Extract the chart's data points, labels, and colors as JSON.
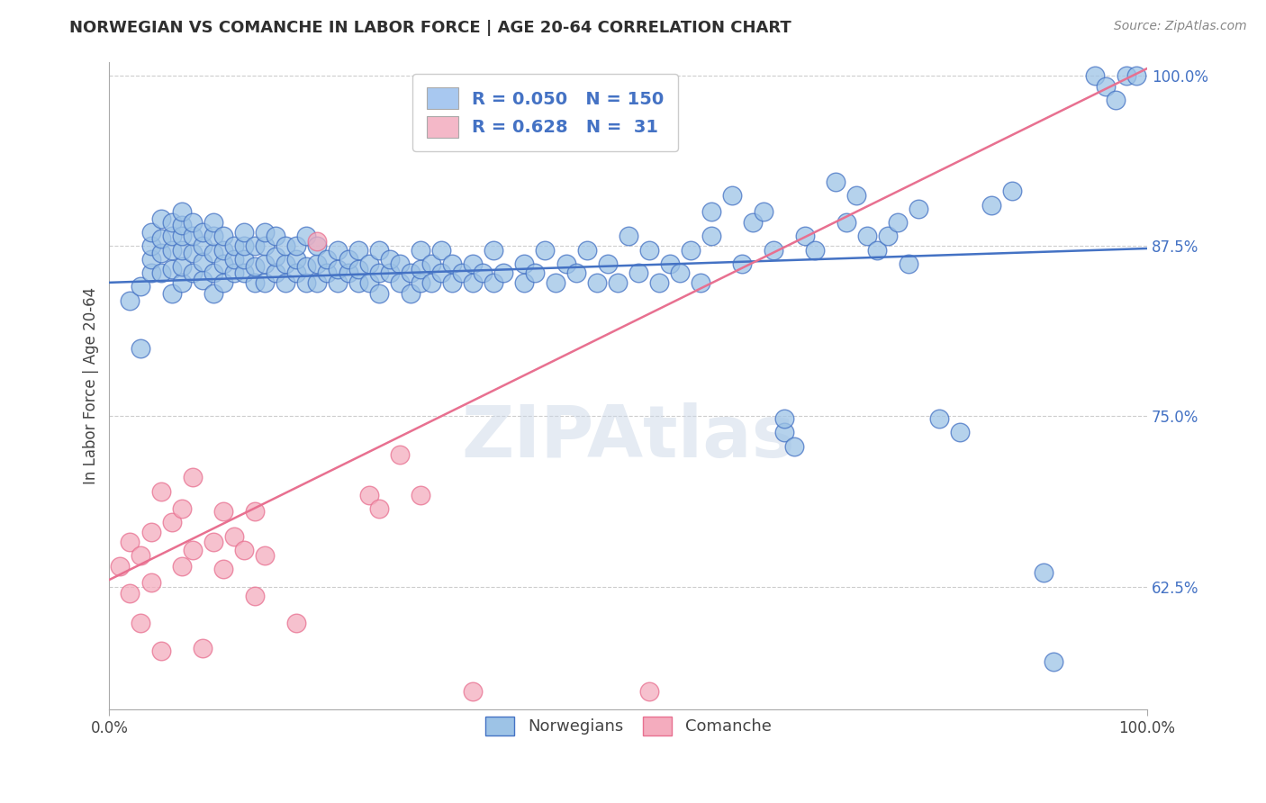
{
  "title": "NORWEGIAN VS COMANCHE IN LABOR FORCE | AGE 20-64 CORRELATION CHART",
  "source": "Source: ZipAtlas.com",
  "ylabel": "In Labor Force | Age 20-64",
  "xlim": [
    0.0,
    1.0
  ],
  "ylim": [
    0.535,
    1.01
  ],
  "yticks": [
    0.625,
    0.75,
    0.875,
    1.0
  ],
  "ytick_labels": [
    "62.5%",
    "75.0%",
    "87.5%",
    "100.0%"
  ],
  "legend_R_N": [
    {
      "R": "0.050",
      "N": "150",
      "color": "#a8c8f0"
    },
    {
      "R": "0.628",
      "N": " 31",
      "color": "#f4b8c8"
    }
  ],
  "blue_line_x": [
    0.0,
    1.0
  ],
  "blue_line_y": [
    0.848,
    0.873
  ],
  "pink_line_x": [
    0.0,
    1.0
  ],
  "pink_line_y": [
    0.63,
    1.005
  ],
  "scatter_norwegian": [
    [
      0.02,
      0.835
    ],
    [
      0.03,
      0.8
    ],
    [
      0.03,
      0.845
    ],
    [
      0.04,
      0.855
    ],
    [
      0.04,
      0.865
    ],
    [
      0.04,
      0.875
    ],
    [
      0.04,
      0.885
    ],
    [
      0.05,
      0.855
    ],
    [
      0.05,
      0.87
    ],
    [
      0.05,
      0.88
    ],
    [
      0.05,
      0.895
    ],
    [
      0.06,
      0.84
    ],
    [
      0.06,
      0.858
    ],
    [
      0.06,
      0.872
    ],
    [
      0.06,
      0.882
    ],
    [
      0.06,
      0.892
    ],
    [
      0.07,
      0.848
    ],
    [
      0.07,
      0.86
    ],
    [
      0.07,
      0.872
    ],
    [
      0.07,
      0.882
    ],
    [
      0.07,
      0.89
    ],
    [
      0.07,
      0.9
    ],
    [
      0.08,
      0.855
    ],
    [
      0.08,
      0.87
    ],
    [
      0.08,
      0.882
    ],
    [
      0.08,
      0.892
    ],
    [
      0.09,
      0.85
    ],
    [
      0.09,
      0.863
    ],
    [
      0.09,
      0.875
    ],
    [
      0.09,
      0.885
    ],
    [
      0.1,
      0.84
    ],
    [
      0.1,
      0.855
    ],
    [
      0.1,
      0.87
    ],
    [
      0.1,
      0.882
    ],
    [
      0.1,
      0.892
    ],
    [
      0.11,
      0.848
    ],
    [
      0.11,
      0.862
    ],
    [
      0.11,
      0.872
    ],
    [
      0.11,
      0.882
    ],
    [
      0.12,
      0.855
    ],
    [
      0.12,
      0.865
    ],
    [
      0.12,
      0.875
    ],
    [
      0.13,
      0.855
    ],
    [
      0.13,
      0.865
    ],
    [
      0.13,
      0.875
    ],
    [
      0.13,
      0.885
    ],
    [
      0.14,
      0.848
    ],
    [
      0.14,
      0.86
    ],
    [
      0.14,
      0.875
    ],
    [
      0.15,
      0.848
    ],
    [
      0.15,
      0.862
    ],
    [
      0.15,
      0.875
    ],
    [
      0.15,
      0.885
    ],
    [
      0.16,
      0.855
    ],
    [
      0.16,
      0.867
    ],
    [
      0.16,
      0.882
    ],
    [
      0.17,
      0.848
    ],
    [
      0.17,
      0.862
    ],
    [
      0.17,
      0.875
    ],
    [
      0.18,
      0.855
    ],
    [
      0.18,
      0.865
    ],
    [
      0.18,
      0.875
    ],
    [
      0.19,
      0.848
    ],
    [
      0.19,
      0.86
    ],
    [
      0.19,
      0.882
    ],
    [
      0.2,
      0.848
    ],
    [
      0.2,
      0.862
    ],
    [
      0.2,
      0.875
    ],
    [
      0.21,
      0.855
    ],
    [
      0.21,
      0.865
    ],
    [
      0.22,
      0.848
    ],
    [
      0.22,
      0.858
    ],
    [
      0.22,
      0.872
    ],
    [
      0.23,
      0.855
    ],
    [
      0.23,
      0.865
    ],
    [
      0.24,
      0.848
    ],
    [
      0.24,
      0.858
    ],
    [
      0.24,
      0.872
    ],
    [
      0.25,
      0.848
    ],
    [
      0.25,
      0.862
    ],
    [
      0.26,
      0.84
    ],
    [
      0.26,
      0.855
    ],
    [
      0.26,
      0.872
    ],
    [
      0.27,
      0.855
    ],
    [
      0.27,
      0.865
    ],
    [
      0.28,
      0.848
    ],
    [
      0.28,
      0.862
    ],
    [
      0.29,
      0.84
    ],
    [
      0.29,
      0.855
    ],
    [
      0.3,
      0.848
    ],
    [
      0.3,
      0.858
    ],
    [
      0.3,
      0.872
    ],
    [
      0.31,
      0.848
    ],
    [
      0.31,
      0.862
    ],
    [
      0.32,
      0.855
    ],
    [
      0.32,
      0.872
    ],
    [
      0.33,
      0.848
    ],
    [
      0.33,
      0.862
    ],
    [
      0.34,
      0.855
    ],
    [
      0.35,
      0.848
    ],
    [
      0.35,
      0.862
    ],
    [
      0.36,
      0.855
    ],
    [
      0.37,
      0.848
    ],
    [
      0.37,
      0.872
    ],
    [
      0.38,
      0.855
    ],
    [
      0.4,
      0.848
    ],
    [
      0.4,
      0.862
    ],
    [
      0.41,
      0.855
    ],
    [
      0.42,
      0.872
    ],
    [
      0.43,
      0.848
    ],
    [
      0.44,
      0.862
    ],
    [
      0.45,
      0.855
    ],
    [
      0.46,
      0.872
    ],
    [
      0.47,
      0.848
    ],
    [
      0.48,
      0.862
    ],
    [
      0.49,
      0.848
    ],
    [
      0.5,
      0.882
    ],
    [
      0.51,
      0.855
    ],
    [
      0.52,
      0.872
    ],
    [
      0.53,
      0.848
    ],
    [
      0.54,
      0.862
    ],
    [
      0.55,
      0.855
    ],
    [
      0.56,
      0.872
    ],
    [
      0.57,
      0.848
    ],
    [
      0.58,
      0.882
    ],
    [
      0.58,
      0.9
    ],
    [
      0.6,
      0.912
    ],
    [
      0.61,
      0.862
    ],
    [
      0.62,
      0.892
    ],
    [
      0.63,
      0.9
    ],
    [
      0.64,
      0.872
    ],
    [
      0.65,
      0.738
    ],
    [
      0.65,
      0.748
    ],
    [
      0.66,
      0.728
    ],
    [
      0.67,
      0.882
    ],
    [
      0.68,
      0.872
    ],
    [
      0.7,
      0.922
    ],
    [
      0.71,
      0.892
    ],
    [
      0.72,
      0.912
    ],
    [
      0.73,
      0.882
    ],
    [
      0.74,
      0.872
    ],
    [
      0.75,
      0.882
    ],
    [
      0.76,
      0.892
    ],
    [
      0.77,
      0.862
    ],
    [
      0.78,
      0.902
    ],
    [
      0.8,
      0.748
    ],
    [
      0.82,
      0.738
    ],
    [
      0.85,
      0.905
    ],
    [
      0.87,
      0.915
    ],
    [
      0.9,
      0.635
    ],
    [
      0.91,
      0.57
    ],
    [
      0.95,
      1.0
    ],
    [
      0.96,
      0.992
    ],
    [
      0.97,
      0.982
    ],
    [
      0.98,
      1.0
    ],
    [
      0.99,
      1.0
    ]
  ],
  "scatter_comanche": [
    [
      0.01,
      0.64
    ],
    [
      0.02,
      0.62
    ],
    [
      0.02,
      0.658
    ],
    [
      0.03,
      0.598
    ],
    [
      0.03,
      0.648
    ],
    [
      0.04,
      0.628
    ],
    [
      0.04,
      0.665
    ],
    [
      0.05,
      0.578
    ],
    [
      0.05,
      0.695
    ],
    [
      0.06,
      0.672
    ],
    [
      0.07,
      0.64
    ],
    [
      0.07,
      0.682
    ],
    [
      0.08,
      0.652
    ],
    [
      0.08,
      0.705
    ],
    [
      0.09,
      0.58
    ],
    [
      0.1,
      0.658
    ],
    [
      0.11,
      0.638
    ],
    [
      0.11,
      0.68
    ],
    [
      0.12,
      0.662
    ],
    [
      0.13,
      0.652
    ],
    [
      0.14,
      0.618
    ],
    [
      0.14,
      0.68
    ],
    [
      0.15,
      0.648
    ],
    [
      0.18,
      0.598
    ],
    [
      0.2,
      0.878
    ],
    [
      0.25,
      0.692
    ],
    [
      0.26,
      0.682
    ],
    [
      0.28,
      0.722
    ],
    [
      0.3,
      0.692
    ],
    [
      0.35,
      0.548
    ],
    [
      0.52,
      0.548
    ]
  ],
  "blue_color": "#4472c4",
  "pink_color": "#e87090",
  "dot_blue_face": "#9dc3e6",
  "dot_blue_edge": "#4472c4",
  "dot_pink_face": "#f4acbe",
  "dot_pink_edge": "#e87090",
  "grid_color": "#c8c8c8",
  "bg_color": "#ffffff",
  "text_blue": "#4472c4",
  "text_dark": "#2f2f2f",
  "text_source": "#888888"
}
